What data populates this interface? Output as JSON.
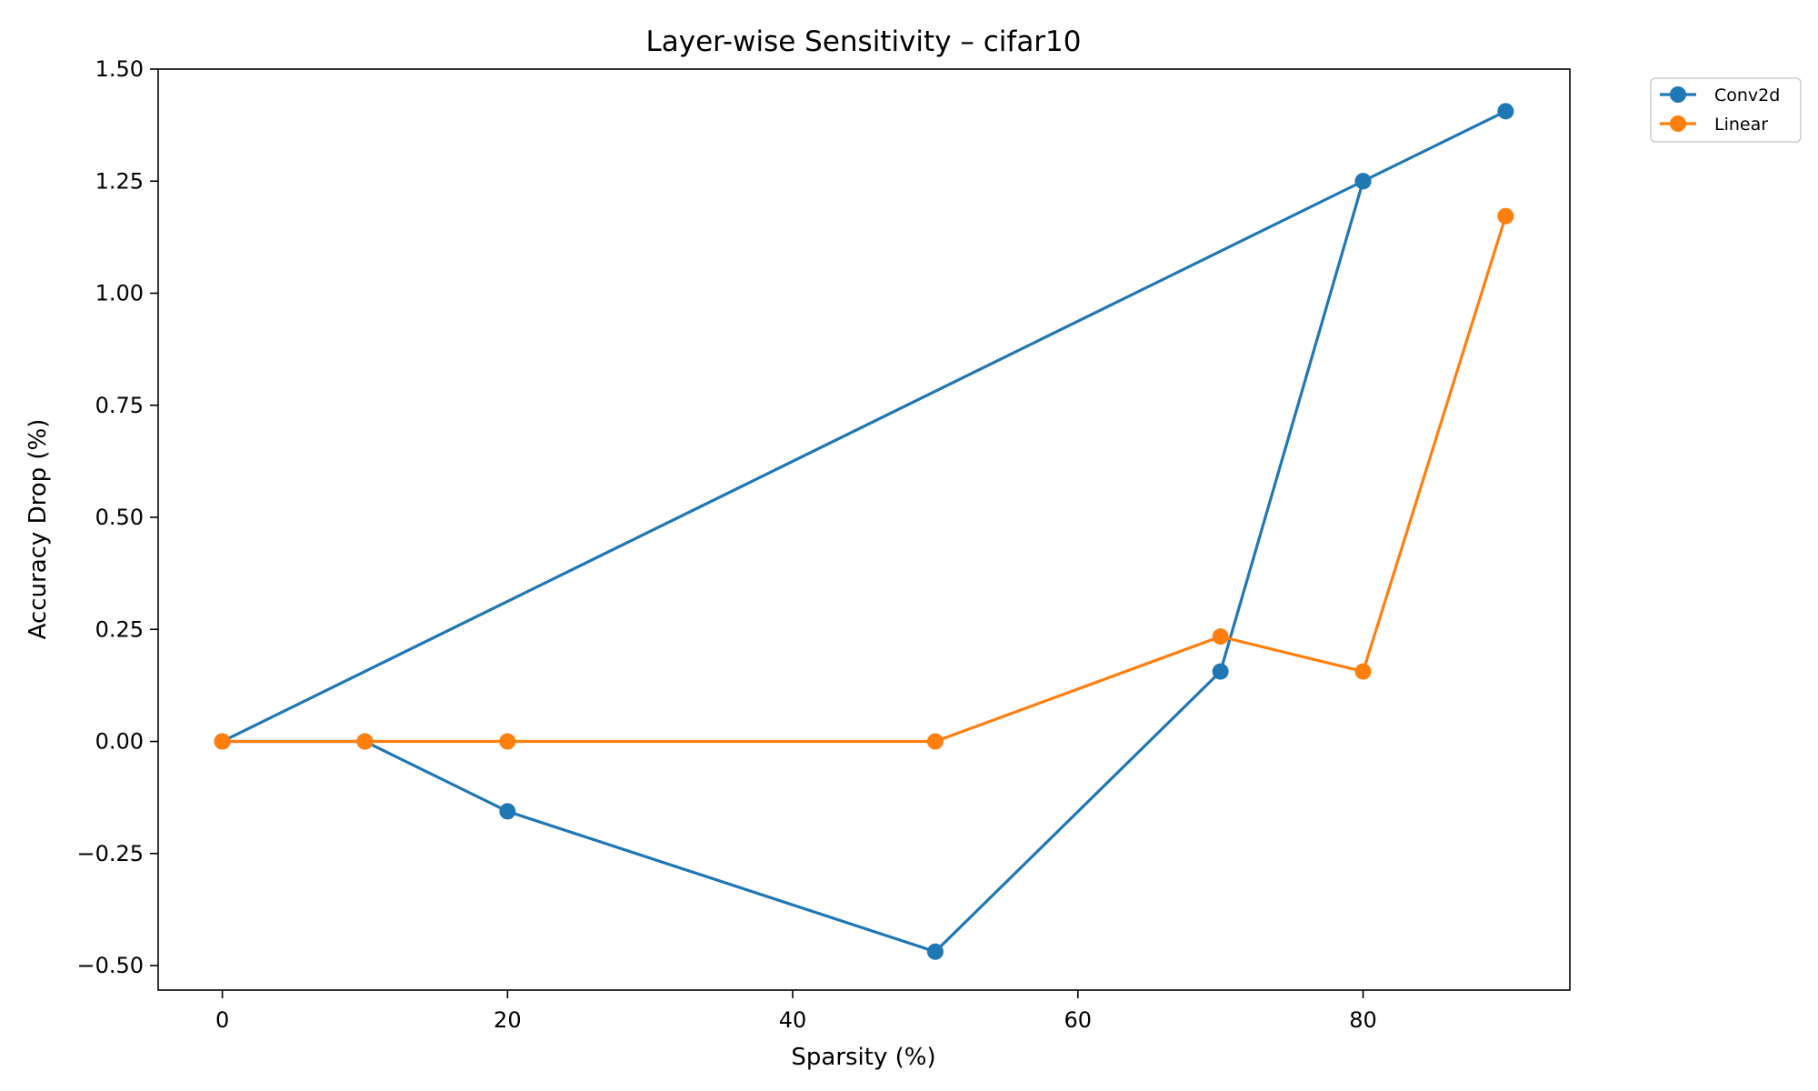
{
  "chart_data": {
    "type": "line",
    "title": "Layer-wise Sensitivity – cifar10",
    "xlabel": "Sparsity (%)",
    "ylabel": "Accuracy Drop (%)",
    "xlim": [
      -4.5,
      94.5
    ],
    "ylim": [
      -0.5547,
      1.5
    ],
    "x_ticks": [
      0,
      20,
      40,
      60,
      80
    ],
    "x_tick_labels": [
      "0",
      "20",
      "40",
      "60",
      "80"
    ],
    "y_ticks": [
      -0.5,
      -0.25,
      0,
      0.25,
      0.5,
      0.75,
      1.0,
      1.25,
      1.5
    ],
    "y_tick_labels": [
      "−0.50",
      "−0.25",
      "0.00",
      "0.25",
      "0.50",
      "0.75",
      "1.00",
      "1.25",
      "1.50"
    ],
    "grid": false,
    "legend_position": "outside upper right",
    "series": [
      {
        "name": "Conv2d",
        "color": "#1f77b4",
        "x": [
          0,
          10,
          20,
          50,
          70,
          80,
          90,
          80,
          0
        ],
        "y": [
          0.0,
          0.0,
          -0.156,
          -0.469,
          0.156,
          1.25,
          1.406,
          1.25,
          0.0
        ]
      },
      {
        "name": "Linear",
        "color": "#ff7f0e",
        "x": [
          0,
          10,
          20,
          50,
          70,
          80,
          90
        ],
        "y": [
          0.0,
          0.0,
          0.0,
          0.0,
          0.234,
          0.156,
          1.172
        ]
      }
    ]
  }
}
